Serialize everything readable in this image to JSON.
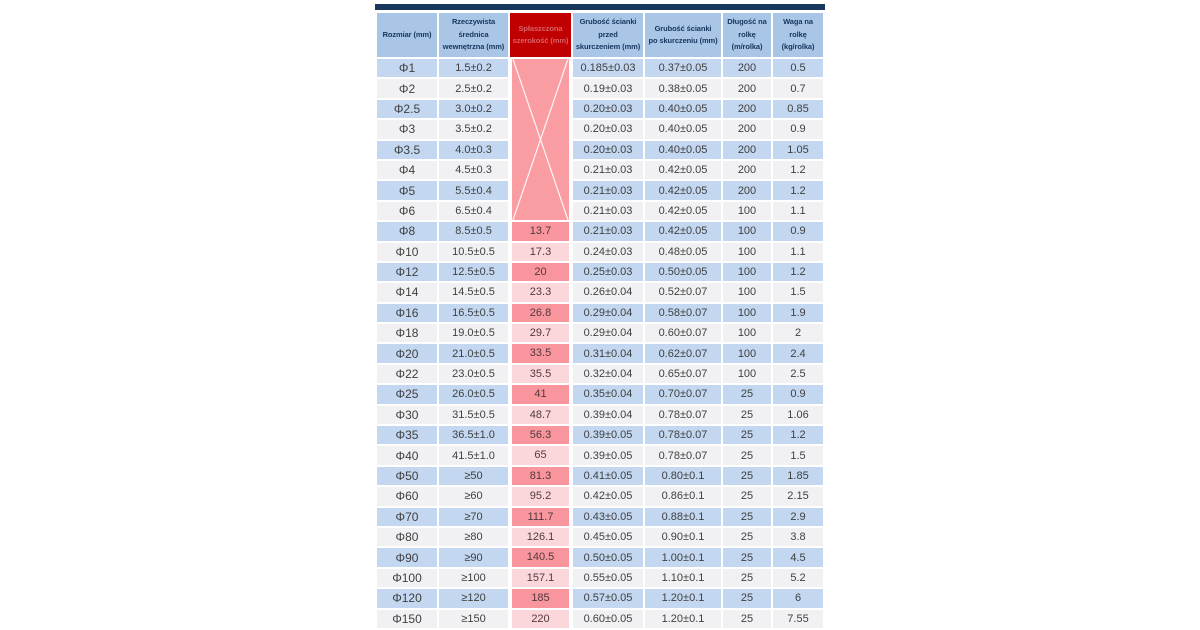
{
  "table": {
    "headers": [
      "Rozmiar (mm)",
      "Rzeczywista\nśrednica\nwewnętrzna (mm)",
      "Spłaszczona\nszerokość (mm)",
      "Grubość ścianki\nprzed\nskurczeniem (mm)",
      "Grubość ścianki\npo skurczeniu (mm)",
      "Długość na\nrolkę (m/rolka)",
      "Waga na\nrolkę (kg/rolka)"
    ],
    "rows": [
      [
        "Φ1",
        "1.5±0.2",
        "",
        "0.185±0.03",
        "0.37±0.05",
        "200",
        "0.5"
      ],
      [
        "Φ2",
        "2.5±0.2",
        "",
        "0.19±0.03",
        "0.38±0.05",
        "200",
        "0.7"
      ],
      [
        "Φ2.5",
        "3.0±0.2",
        "",
        "0.20±0.03",
        "0.40±0.05",
        "200",
        "0.85"
      ],
      [
        "Φ3",
        "3.5±0.2",
        "",
        "0.20±0.03",
        "0.40±0.05",
        "200",
        "0.9"
      ],
      [
        "Φ3.5",
        "4.0±0.3",
        "",
        "0.20±0.03",
        "0.40±0.05",
        "200",
        "1.05"
      ],
      [
        "Φ4",
        "4.5±0.3",
        "",
        "0.21±0.03",
        "0.42±0.05",
        "200",
        "1.2"
      ],
      [
        "Φ5",
        "5.5±0.4",
        "",
        "0.21±0.03",
        "0.42±0.05",
        "200",
        "1.2"
      ],
      [
        "Φ6",
        "6.5±0.4",
        "",
        "0.21±0.03",
        "0.42±0.05",
        "100",
        "1.1"
      ],
      [
        "Φ8",
        "8.5±0.5",
        "13.7",
        "0.21±0.03",
        "0.42±0.05",
        "100",
        "0.9"
      ],
      [
        "Φ10",
        "10.5±0.5",
        "17.3",
        "0.24±0.03",
        "0.48±0.05",
        "100",
        "1.1"
      ],
      [
        "Φ12",
        "12.5±0.5",
        "20",
        "0.25±0.03",
        "0.50±0.05",
        "100",
        "1.2"
      ],
      [
        "Φ14",
        "14.5±0.5",
        "23.3",
        "0.26±0.04",
        "0.52±0.07",
        "100",
        "1.5"
      ],
      [
        "Φ16",
        "16.5±0.5",
        "26.8",
        "0.29±0.04",
        "0.58±0.07",
        "100",
        "1.9"
      ],
      [
        "Φ18",
        "19.0±0.5",
        "29.7",
        "0.29±0.04",
        "0.60±0.07",
        "100",
        "2"
      ],
      [
        "Φ20",
        "21.0±0.5",
        "33.5",
        "0.31±0.04",
        "0.62±0.07",
        "100",
        "2.4"
      ],
      [
        "Φ22",
        "23.0±0.5",
        "35.5",
        "0.32±0.04",
        "0.65±0.07",
        "100",
        "2.5"
      ],
      [
        "Φ25",
        "26.0±0.5",
        "41",
        "0.35±0.04",
        "0.70±0.07",
        "25",
        "0.9"
      ],
      [
        "Φ30",
        "31.5±0.5",
        "48.7",
        "0.39±0.04",
        "0.78±0.07",
        "25",
        "1.06"
      ],
      [
        "Φ35",
        "36.5±1.0",
        "56.3",
        "0.39±0.05",
        "0.78±0.07",
        "25",
        "1.2"
      ],
      [
        "Φ40",
        "41.5±1.0",
        "65",
        "0.39±0.05",
        "0.78±0.07",
        "25",
        "1.5"
      ],
      [
        "Φ50",
        "≥50",
        "81.3",
        "0.41±0.05",
        "0.80±0.1",
        "25",
        "1.85"
      ],
      [
        "Φ60",
        "≥60",
        "95.2",
        "0.42±0.05",
        "0.86±0.1",
        "25",
        "2.15"
      ],
      [
        "Φ70",
        "≥70",
        "111.7",
        "0.43±0.05",
        "0.88±0.1",
        "25",
        "2.9"
      ],
      [
        "Φ80",
        "≥80",
        "126.1",
        "0.45±0.05",
        "0.90±0.1",
        "25",
        "3.8"
      ],
      [
        "Φ90",
        "≥90",
        "140.5",
        "0.50±0.05",
        "1.00±0.1",
        "25",
        "4.5"
      ],
      [
        "Φ100",
        "≥100",
        "157.1",
        "0.55±0.05",
        "1.10±0.1",
        "25",
        "5.2"
      ],
      [
        "Φ120",
        "≥120",
        "185",
        "0.57±0.05",
        "1.20±0.1",
        "25",
        "6"
      ],
      [
        "Φ150",
        "≥150",
        "220",
        "0.60±0.05",
        "1.20±0.1",
        "25",
        "7.55"
      ]
    ]
  },
  "colors": {
    "top_bar": "#17375D",
    "header_bg": "#A9C6E7",
    "header_text": "#17365D",
    "red_header_bg": "#C00000",
    "red_header_text": "#D95F66",
    "row_blue": "#C3D7F0",
    "row_white": "#F1F1F3",
    "pink_block": "#FA9DA3",
    "pink_dark": "#F9959D",
    "pink_light": "#FBD6DA"
  },
  "chart_data": {
    "type": "table",
    "title": "",
    "columns": [
      "Rozmiar (mm)",
      "Rzeczywista średnica wewnętrzna (mm)",
      "Spłaszczona szerokość (mm)",
      "Grubość ścianki przed skurczeniem (mm)",
      "Grubość ścianki po skurczeniu (mm)",
      "Długość na rolkę (m/rolka)",
      "Waga na rolkę (kg/rolka)"
    ],
    "rows": [
      [
        "Φ1",
        "1.5±0.2",
        "",
        "0.185±0.03",
        "0.37±0.05",
        200,
        0.5
      ],
      [
        "Φ2",
        "2.5±0.2",
        "",
        "0.19±0.03",
        "0.38±0.05",
        200,
        0.7
      ],
      [
        "Φ2.5",
        "3.0±0.2",
        "",
        "0.20±0.03",
        "0.40±0.05",
        200,
        0.85
      ],
      [
        "Φ3",
        "3.5±0.2",
        "",
        "0.20±0.03",
        "0.40±0.05",
        200,
        0.9
      ],
      [
        "Φ3.5",
        "4.0±0.3",
        "",
        "0.20±0.03",
        "0.40±0.05",
        200,
        1.05
      ],
      [
        "Φ4",
        "4.5±0.3",
        "",
        "0.21±0.03",
        "0.42±0.05",
        200,
        1.2
      ],
      [
        "Φ5",
        "5.5±0.4",
        "",
        "0.21±0.03",
        "0.42±0.05",
        200,
        1.2
      ],
      [
        "Φ6",
        "6.5±0.4",
        "",
        "0.21±0.03",
        "0.42±0.05",
        100,
        1.1
      ],
      [
        "Φ8",
        "8.5±0.5",
        13.7,
        "0.21±0.03",
        "0.42±0.05",
        100,
        0.9
      ],
      [
        "Φ10",
        "10.5±0.5",
        17.3,
        "0.24±0.03",
        "0.48±0.05",
        100,
        1.1
      ],
      [
        "Φ12",
        "12.5±0.5",
        20,
        "0.25±0.03",
        "0.50±0.05",
        100,
        1.2
      ],
      [
        "Φ14",
        "14.5±0.5",
        23.3,
        "0.26±0.04",
        "0.52±0.07",
        100,
        1.5
      ],
      [
        "Φ16",
        "16.5±0.5",
        26.8,
        "0.29±0.04",
        "0.58±0.07",
        100,
        1.9
      ],
      [
        "Φ18",
        "19.0±0.5",
        29.7,
        "0.29±0.04",
        "0.60±0.07",
        100,
        2
      ],
      [
        "Φ20",
        "21.0±0.5",
        33.5,
        "0.31±0.04",
        "0.62±0.07",
        100,
        2.4
      ],
      [
        "Φ22",
        "23.0±0.5",
        35.5,
        "0.32±0.04",
        "0.65±0.07",
        100,
        2.5
      ],
      [
        "Φ25",
        "26.0±0.5",
        41,
        "0.35±0.04",
        "0.70±0.07",
        25,
        0.9
      ],
      [
        "Φ30",
        "31.5±0.5",
        48.7,
        "0.39±0.04",
        "0.78±0.07",
        25,
        1.06
      ],
      [
        "Φ35",
        "36.5±1.0",
        56.3,
        "0.39±0.05",
        "0.78±0.07",
        25,
        1.2
      ],
      [
        "Φ40",
        "41.5±1.0",
        65,
        "0.39±0.05",
        "0.78±0.07",
        25,
        1.5
      ],
      [
        "Φ50",
        "≥50",
        81.3,
        "0.41±0.05",
        "0.80±0.1",
        25,
        1.85
      ],
      [
        "Φ60",
        "≥60",
        95.2,
        "0.42±0.05",
        "0.86±0.1",
        25,
        2.15
      ],
      [
        "Φ70",
        "≥70",
        111.7,
        "0.43±0.05",
        "0.88±0.1",
        25,
        2.9
      ],
      [
        "Φ80",
        "≥80",
        126.1,
        "0.45±0.05",
        "0.90±0.1",
        25,
        3.8
      ],
      [
        "Φ90",
        "≥90",
        140.5,
        "0.50±0.05",
        "1.00±0.1",
        25,
        4.5
      ],
      [
        "Φ100",
        "≥100",
        157.1,
        "0.55±0.05",
        "1.10±0.1",
        25,
        5.2
      ],
      [
        "Φ120",
        "≥120",
        185,
        "0.57±0.05",
        "1.20±0.1",
        25,
        6
      ],
      [
        "Φ150",
        "≥150",
        220,
        "0.60±0.05",
        "1.20±0.1",
        25,
        7.55
      ]
    ]
  }
}
